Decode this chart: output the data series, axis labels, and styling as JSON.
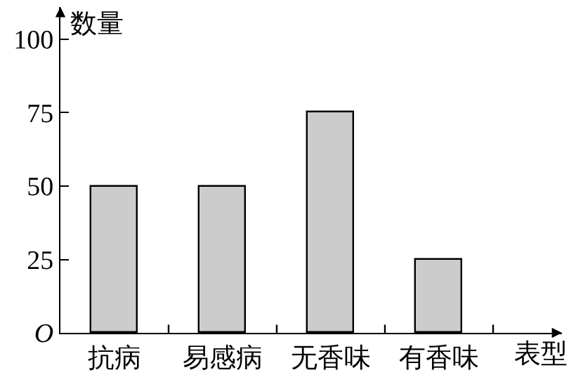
{
  "chart_data": {
    "type": "bar",
    "xlabel": "表型",
    "ylabel": "数量",
    "categories": [
      "抗病",
      "易感病",
      "无香味",
      "有香味"
    ],
    "values": [
      50,
      50,
      75,
      25
    ],
    "color": "#cccccc",
    "ylim": [
      0,
      111
    ],
    "yticks": [
      {
        "value": 0,
        "label": "O"
      },
      25,
      50,
      75,
      100
    ]
  }
}
